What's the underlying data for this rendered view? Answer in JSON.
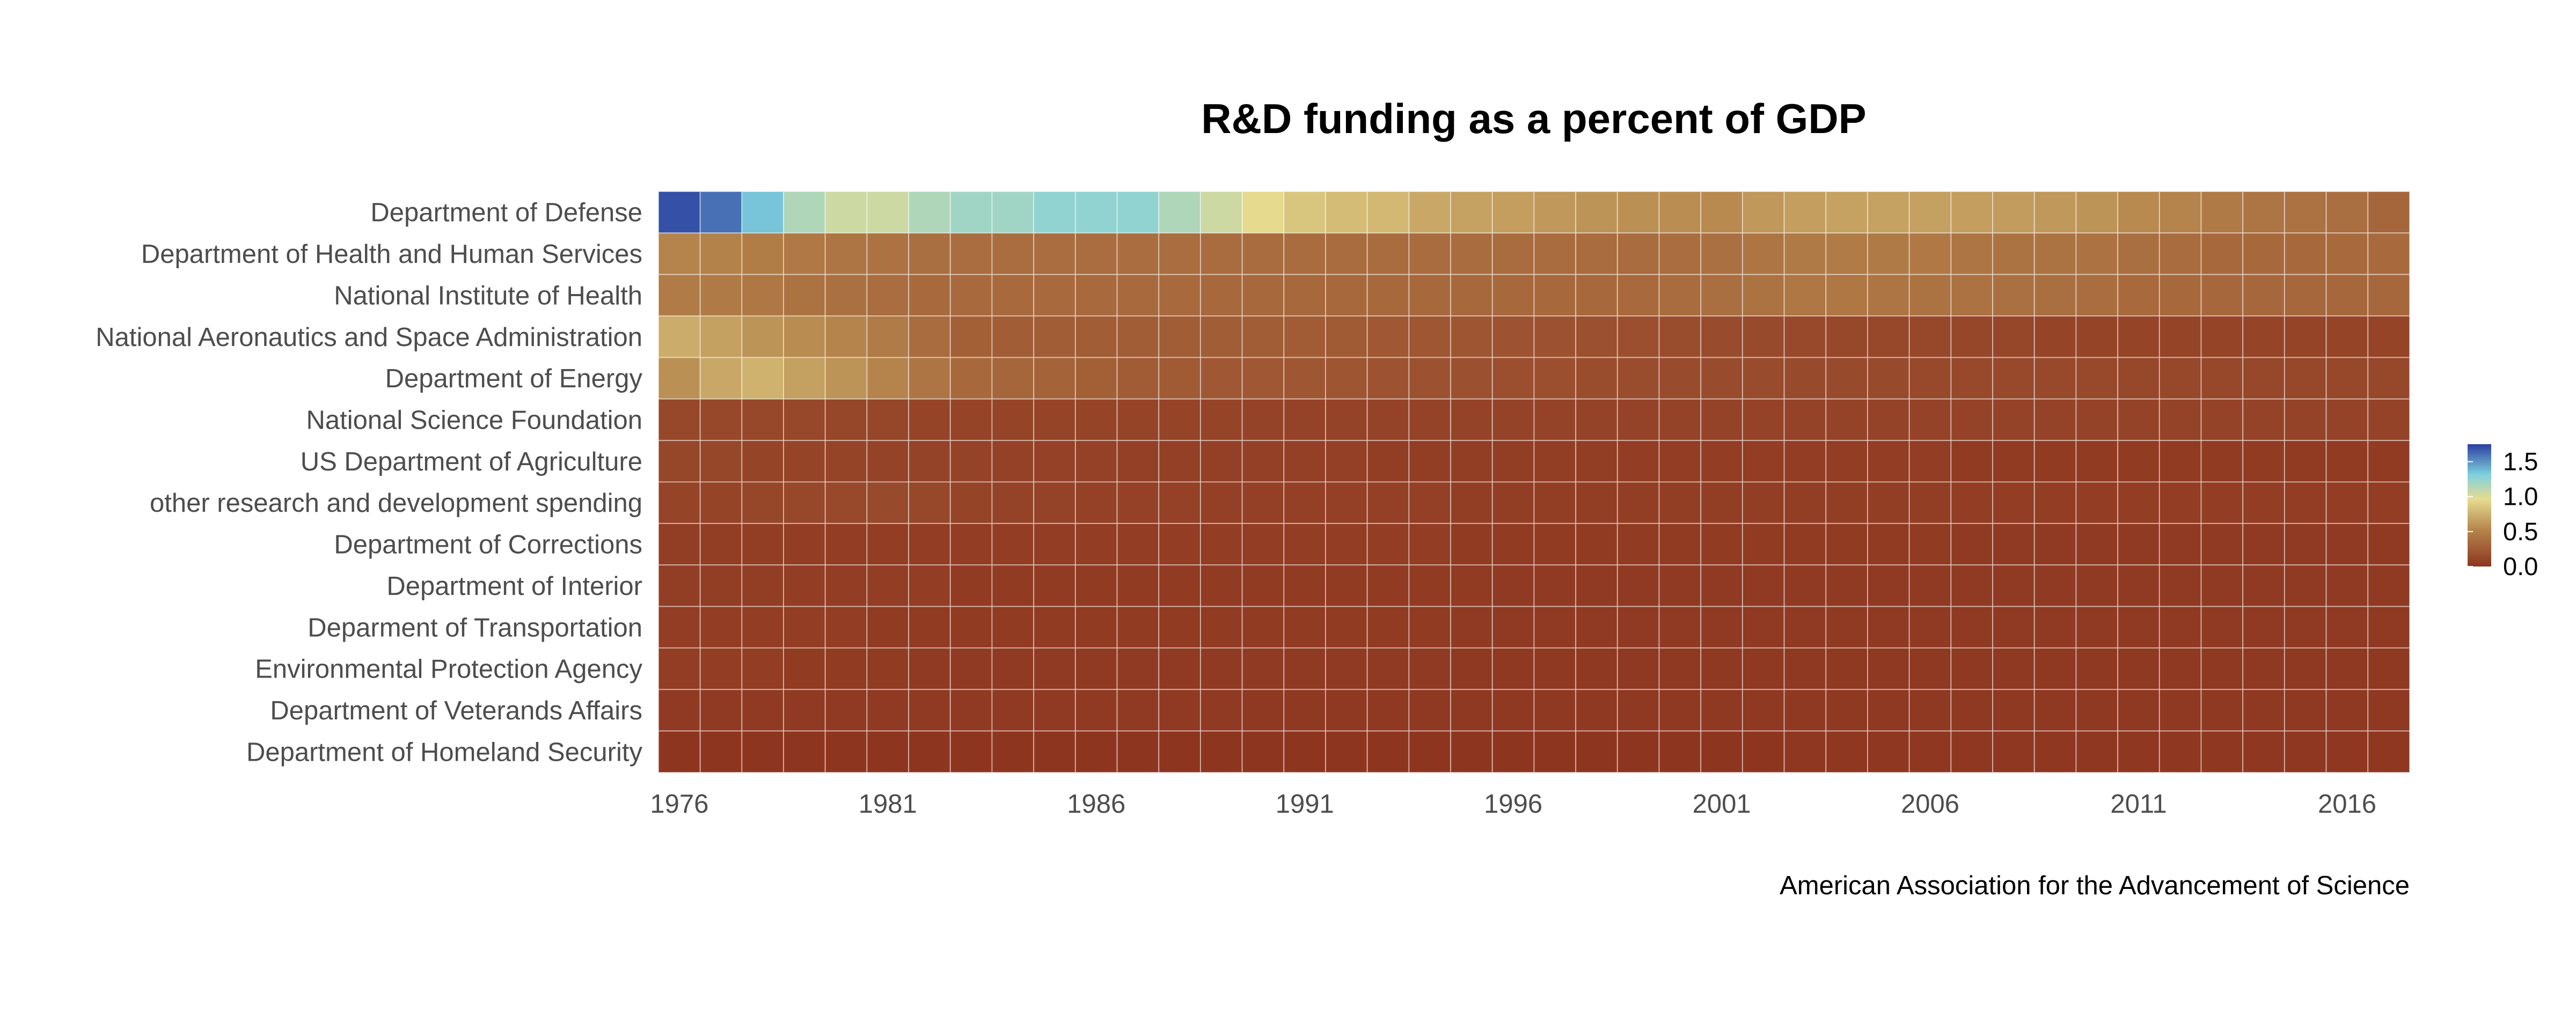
{
  "chart_data": {
    "type": "heatmap",
    "title": "R&D funding as a percent of GDP",
    "caption": "American Association for the Advancement of Science",
    "xlabel": "",
    "ylabel": "",
    "x_tick_labels": [
      "1976",
      "1981",
      "1986",
      "1991",
      "1996",
      "2001",
      "2006",
      "2011",
      "2016"
    ],
    "years": [
      1976,
      1977,
      1978,
      1979,
      1980,
      1981,
      1982,
      1983,
      1984,
      1985,
      1986,
      1987,
      1988,
      1989,
      1990,
      1991,
      1992,
      1993,
      1994,
      1995,
      1996,
      1997,
      1998,
      1999,
      2000,
      2001,
      2002,
      2003,
      2004,
      2005,
      2006,
      2007,
      2008,
      2009,
      2010,
      2011,
      2012,
      2013,
      2014,
      2015,
      2016,
      2017
    ],
    "colorbar": {
      "ticks": [
        "1.5",
        "1.0",
        "0.5",
        "0.0"
      ],
      "range": [
        0.0,
        1.75
      ]
    },
    "colors": {
      "low": "#8e3520",
      "mid_low": "#b5854c",
      "mid": "#e6dc8f",
      "mid_high": "#7fd1de",
      "high": "#2b3fa0",
      "grid": "#ffffff"
    },
    "rows": [
      {
        "name": "Department of Defense",
        "values": [
          1.7,
          1.6,
          1.35,
          1.15,
          1.05,
          1.05,
          1.15,
          1.2,
          1.2,
          1.25,
          1.25,
          1.25,
          1.15,
          1.05,
          0.95,
          0.85,
          0.8,
          0.78,
          0.7,
          0.67,
          0.65,
          0.62,
          0.6,
          0.58,
          0.57,
          0.55,
          0.62,
          0.65,
          0.67,
          0.67,
          0.66,
          0.65,
          0.64,
          0.62,
          0.6,
          0.55,
          0.52,
          0.45,
          0.42,
          0.4,
          0.38,
          0.32
        ]
      },
      {
        "name": "Department of Health and Human Services",
        "values": [
          0.52,
          0.5,
          0.47,
          0.44,
          0.42,
          0.4,
          0.38,
          0.37,
          0.37,
          0.37,
          0.37,
          0.37,
          0.37,
          0.36,
          0.36,
          0.36,
          0.36,
          0.36,
          0.36,
          0.36,
          0.36,
          0.36,
          0.36,
          0.36,
          0.37,
          0.39,
          0.42,
          0.45,
          0.46,
          0.45,
          0.44,
          0.42,
          0.41,
          0.41,
          0.4,
          0.38,
          0.36,
          0.34,
          0.34,
          0.34,
          0.35,
          0.35
        ]
      },
      {
        "name": "National Institute of Health",
        "values": [
          0.46,
          0.45,
          0.43,
          0.41,
          0.39,
          0.37,
          0.35,
          0.35,
          0.35,
          0.35,
          0.35,
          0.35,
          0.35,
          0.34,
          0.34,
          0.34,
          0.34,
          0.34,
          0.34,
          0.34,
          0.34,
          0.34,
          0.34,
          0.35,
          0.36,
          0.38,
          0.41,
          0.43,
          0.43,
          0.42,
          0.41,
          0.4,
          0.39,
          0.38,
          0.37,
          0.35,
          0.34,
          0.33,
          0.33,
          0.33,
          0.33,
          0.33
        ]
      },
      {
        "name": "National Aeronautics and Space Administration",
        "values": [
          0.72,
          0.66,
          0.6,
          0.56,
          0.52,
          0.46,
          0.36,
          0.28,
          0.26,
          0.26,
          0.26,
          0.26,
          0.26,
          0.26,
          0.26,
          0.25,
          0.24,
          0.23,
          0.22,
          0.21,
          0.2,
          0.19,
          0.18,
          0.17,
          0.16,
          0.15,
          0.14,
          0.13,
          0.12,
          0.12,
          0.12,
          0.11,
          0.11,
          0.1,
          0.1,
          0.1,
          0.1,
          0.1,
          0.1,
          0.1,
          0.1,
          0.1
        ]
      },
      {
        "name": "Department of Energy",
        "values": [
          0.58,
          0.7,
          0.75,
          0.66,
          0.6,
          0.52,
          0.42,
          0.34,
          0.32,
          0.3,
          0.28,
          0.25,
          0.24,
          0.23,
          0.23,
          0.22,
          0.21,
          0.2,
          0.19,
          0.18,
          0.17,
          0.17,
          0.16,
          0.16,
          0.15,
          0.15,
          0.15,
          0.14,
          0.14,
          0.14,
          0.13,
          0.13,
          0.13,
          0.13,
          0.13,
          0.12,
          0.12,
          0.12,
          0.12,
          0.12,
          0.12,
          0.12
        ]
      },
      {
        "name": "National Science Foundation",
        "values": [
          0.12,
          0.12,
          0.12,
          0.12,
          0.11,
          0.11,
          0.1,
          0.1,
          0.1,
          0.1,
          0.1,
          0.1,
          0.1,
          0.1,
          0.09,
          0.09,
          0.09,
          0.09,
          0.09,
          0.09,
          0.09,
          0.09,
          0.09,
          0.09,
          0.09,
          0.09,
          0.09,
          0.09,
          0.09,
          0.09,
          0.09,
          0.09,
          0.09,
          0.09,
          0.09,
          0.09,
          0.09,
          0.09,
          0.09,
          0.09,
          0.09,
          0.09
        ]
      },
      {
        "name": "US Department of Agriculture",
        "values": [
          0.11,
          0.11,
          0.1,
          0.1,
          0.1,
          0.09,
          0.09,
          0.09,
          0.08,
          0.08,
          0.08,
          0.07,
          0.07,
          0.07,
          0.07,
          0.07,
          0.07,
          0.06,
          0.06,
          0.06,
          0.06,
          0.06,
          0.06,
          0.05,
          0.05,
          0.05,
          0.05,
          0.05,
          0.05,
          0.05,
          0.05,
          0.04,
          0.04,
          0.04,
          0.04,
          0.04,
          0.04,
          0.04,
          0.04,
          0.04,
          0.04,
          0.04
        ]
      },
      {
        "name": "other research and development spending",
        "values": [
          0.1,
          0.1,
          0.11,
          0.12,
          0.13,
          0.14,
          0.12,
          0.1,
          0.09,
          0.09,
          0.08,
          0.08,
          0.08,
          0.07,
          0.07,
          0.07,
          0.07,
          0.07,
          0.07,
          0.06,
          0.06,
          0.06,
          0.06,
          0.06,
          0.06,
          0.06,
          0.06,
          0.06,
          0.06,
          0.06,
          0.06,
          0.05,
          0.05,
          0.05,
          0.05,
          0.05,
          0.05,
          0.05,
          0.05,
          0.05,
          0.05,
          0.05
        ]
      },
      {
        "name": "Department of Corrections",
        "values": [
          0.06,
          0.06,
          0.06,
          0.05,
          0.05,
          0.05,
          0.05,
          0.05,
          0.05,
          0.05,
          0.05,
          0.05,
          0.05,
          0.05,
          0.05,
          0.05,
          0.05,
          0.05,
          0.05,
          0.04,
          0.04,
          0.04,
          0.04,
          0.04,
          0.04,
          0.04,
          0.04,
          0.04,
          0.04,
          0.04,
          0.04,
          0.03,
          0.03,
          0.03,
          0.03,
          0.03,
          0.03,
          0.03,
          0.03,
          0.03,
          0.03,
          0.03
        ]
      },
      {
        "name": "Department of Interior",
        "values": [
          0.06,
          0.06,
          0.06,
          0.05,
          0.05,
          0.05,
          0.05,
          0.04,
          0.04,
          0.04,
          0.04,
          0.04,
          0.04,
          0.04,
          0.04,
          0.04,
          0.04,
          0.04,
          0.04,
          0.04,
          0.03,
          0.03,
          0.03,
          0.03,
          0.03,
          0.03,
          0.03,
          0.03,
          0.03,
          0.03,
          0.03,
          0.03,
          0.03,
          0.03,
          0.03,
          0.03,
          0.03,
          0.03,
          0.03,
          0.03,
          0.03,
          0.03
        ]
      },
      {
        "name": "Deparment of Transportation",
        "values": [
          0.05,
          0.05,
          0.05,
          0.05,
          0.05,
          0.04,
          0.04,
          0.04,
          0.04,
          0.04,
          0.04,
          0.04,
          0.04,
          0.04,
          0.04,
          0.04,
          0.04,
          0.04,
          0.04,
          0.03,
          0.03,
          0.03,
          0.03,
          0.03,
          0.03,
          0.03,
          0.03,
          0.03,
          0.03,
          0.03,
          0.03,
          0.03,
          0.03,
          0.03,
          0.03,
          0.03,
          0.03,
          0.03,
          0.03,
          0.03,
          0.03,
          0.03
        ]
      },
      {
        "name": "Environmental Protection Agency",
        "values": [
          0.05,
          0.05,
          0.05,
          0.04,
          0.04,
          0.04,
          0.03,
          0.03,
          0.03,
          0.03,
          0.03,
          0.03,
          0.03,
          0.03,
          0.03,
          0.03,
          0.03,
          0.03,
          0.03,
          0.02,
          0.02,
          0.02,
          0.02,
          0.02,
          0.02,
          0.02,
          0.02,
          0.02,
          0.02,
          0.02,
          0.02,
          0.02,
          0.02,
          0.02,
          0.02,
          0.02,
          0.02,
          0.02,
          0.02,
          0.02,
          0.02,
          0.02
        ]
      },
      {
        "name": "Department of Veterands Affairs",
        "values": [
          0.03,
          0.03,
          0.03,
          0.03,
          0.03,
          0.03,
          0.03,
          0.03,
          0.03,
          0.03,
          0.03,
          0.03,
          0.03,
          0.03,
          0.02,
          0.02,
          0.02,
          0.02,
          0.02,
          0.02,
          0.02,
          0.02,
          0.02,
          0.02,
          0.02,
          0.02,
          0.02,
          0.02,
          0.02,
          0.02,
          0.02,
          0.02,
          0.02,
          0.02,
          0.02,
          0.02,
          0.02,
          0.02,
          0.02,
          0.02,
          0.02,
          0.02
        ]
      },
      {
        "name": "Department of Homeland Security",
        "values": [
          0.0,
          0.0,
          0.0,
          0.0,
          0.0,
          0.0,
          0.0,
          0.0,
          0.0,
          0.0,
          0.0,
          0.0,
          0.0,
          0.0,
          0.0,
          0.0,
          0.0,
          0.0,
          0.0,
          0.0,
          0.0,
          0.0,
          0.0,
          0.0,
          0.0,
          0.0,
          0.0,
          0.01,
          0.01,
          0.01,
          0.01,
          0.01,
          0.01,
          0.01,
          0.01,
          0.01,
          0.01,
          0.01,
          0.01,
          0.01,
          0.01,
          0.01
        ]
      }
    ]
  }
}
